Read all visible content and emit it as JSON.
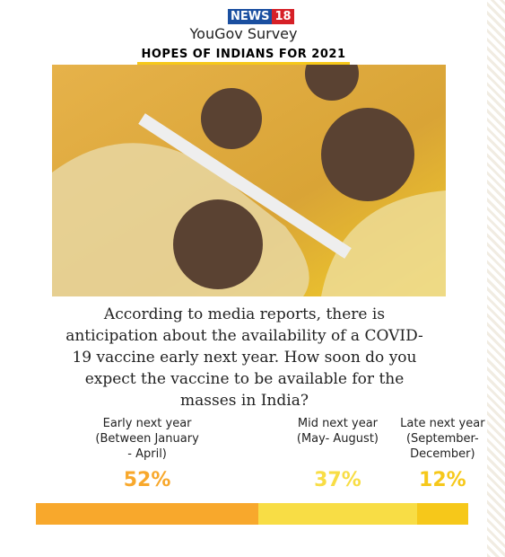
{
  "header": {
    "logo_news": "NEWS",
    "logo_num": "18",
    "survey": "YouGov Survey",
    "title": "HOPES OF INDIANS FOR 2021"
  },
  "question": "According to media reports, there is anticipation about the availability of a COVID-19 vaccine early next year. How soon do you expect the vaccine to be available for the masses in India?",
  "chart_data": {
    "type": "stacked-bar",
    "categories": [
      "Early next year (Between January - April)",
      "Mid next year (May- August)",
      "Late next year (September-December)"
    ],
    "values": [
      52,
      37,
      12
    ],
    "value_labels": [
      "52%",
      "37%",
      "12%"
    ],
    "colors": [
      "#f8a82c",
      "#f8dd45",
      "#f6c81a"
    ]
  }
}
